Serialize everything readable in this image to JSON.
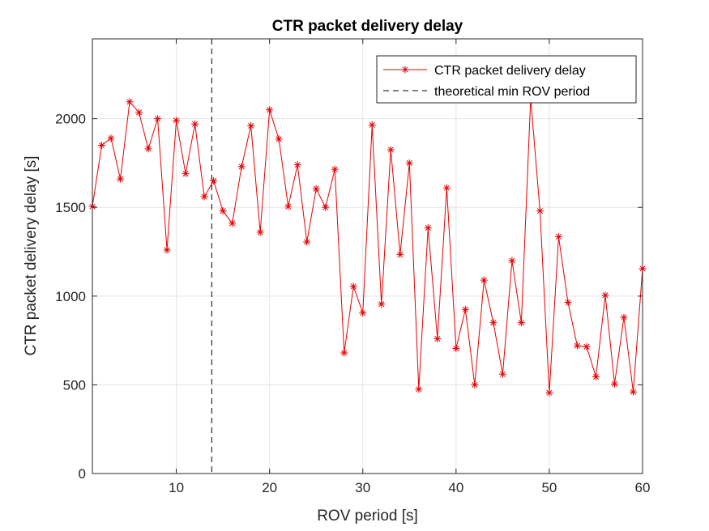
{
  "chart_data": {
    "type": "line",
    "title": "CTR packet delivery delay",
    "xlabel": "ROV period [s]",
    "ylabel": "CTR packet delivery delay [s]",
    "xlim": [
      1,
      60
    ],
    "ylim": [
      0,
      2450
    ],
    "xticks": [
      10,
      20,
      30,
      40,
      50,
      60
    ],
    "yticks": [
      0,
      500,
      1000,
      1500,
      2000
    ],
    "grid": true,
    "legend_position": "top-right",
    "colors": {
      "series": "#e60000",
      "vline": "#000000",
      "axis": "#262626",
      "grid": "#e3e3e3"
    },
    "series": [
      {
        "name": "CTR packet delivery delay",
        "marker": "asterisk",
        "x": [
          1,
          2,
          3,
          4,
          5,
          6,
          7,
          8,
          9,
          10,
          11,
          12,
          13,
          14,
          15,
          16,
          17,
          18,
          19,
          20,
          21,
          22,
          23,
          24,
          25,
          26,
          27,
          28,
          29,
          30,
          31,
          32,
          33,
          34,
          35,
          36,
          37,
          38,
          39,
          40,
          41,
          42,
          43,
          44,
          45,
          46,
          47,
          48,
          49,
          50,
          51,
          52,
          53,
          54,
          55,
          56,
          57,
          58,
          59,
          60
        ],
        "values": [
          1505,
          1850,
          1890,
          1660,
          2095,
          2035,
          1830,
          2000,
          1260,
          1990,
          1690,
          1970,
          1560,
          1650,
          1480,
          1410,
          1730,
          1960,
          1360,
          2050,
          1885,
          1505,
          1740,
          1305,
          1605,
          1500,
          1715,
          680,
          1055,
          905,
          1965,
          955,
          1825,
          1235,
          1750,
          475,
          1385,
          760,
          1610,
          705,
          925,
          500,
          1090,
          850,
          560,
          1200,
          850,
          2115,
          1480,
          455,
          1335,
          965,
          720,
          715,
          545,
          1005,
          505,
          880,
          460,
          1155
        ]
      },
      {
        "name": "theoretical min ROV period",
        "type": "vline",
        "style": "dashed",
        "x": 13.8
      }
    ]
  }
}
